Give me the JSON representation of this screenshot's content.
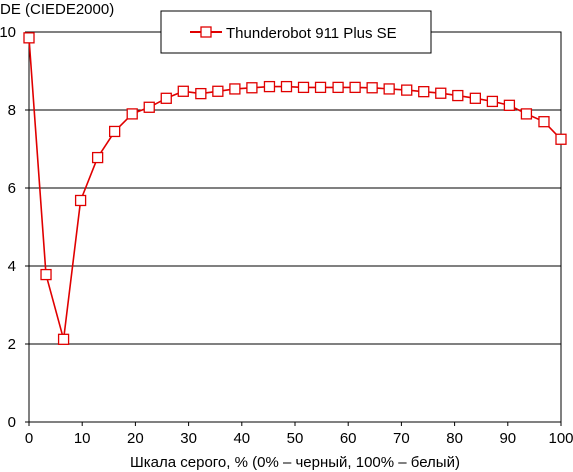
{
  "chart_data": {
    "type": "line",
    "ylabel": "DE (CIEDE2000)",
    "xlabel": "Шкала серого, % (0% – черный, 100% – белый)",
    "xlim": [
      0,
      100
    ],
    "ylim": [
      0,
      10
    ],
    "xticks": [
      0,
      10,
      20,
      30,
      40,
      50,
      60,
      70,
      80,
      90,
      100
    ],
    "yticks": [
      0,
      2,
      4,
      6,
      8,
      10
    ],
    "grid": "horizontal",
    "legend_position": "top-center",
    "series": [
      {
        "name": "Thunderobot 911 Plus SE",
        "color": "#e00000",
        "marker": "square",
        "x": [
          0,
          3.2,
          6.5,
          9.7,
          12.9,
          16.1,
          19.4,
          22.6,
          25.8,
          29.0,
          32.3,
          35.5,
          38.7,
          41.9,
          45.2,
          48.4,
          51.6,
          54.8,
          58.1,
          61.3,
          64.5,
          67.7,
          71.0,
          74.2,
          77.4,
          80.6,
          83.9,
          87.1,
          90.3,
          93.5,
          96.8,
          100
        ],
        "y": [
          9.85,
          3.78,
          2.12,
          5.68,
          6.78,
          7.45,
          7.9,
          8.07,
          8.3,
          8.48,
          8.42,
          8.48,
          8.54,
          8.57,
          8.6,
          8.6,
          8.58,
          8.58,
          8.58,
          8.58,
          8.57,
          8.54,
          8.51,
          8.47,
          8.43,
          8.37,
          8.3,
          8.22,
          8.12,
          7.9,
          7.7,
          7.25
        ]
      }
    ]
  }
}
